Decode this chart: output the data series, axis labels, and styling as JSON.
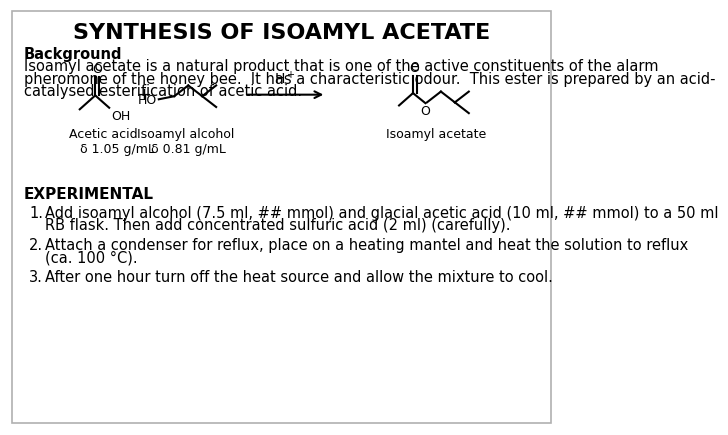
{
  "title": "SYNTHESIS OF ISOAMYL ACETATE",
  "background_color": "#ffffff",
  "border_color": "#b0b0b0",
  "title_fontsize": 16,
  "body_fontsize": 10.5,
  "background_text": "Background",
  "para1": "Isoamyl acetate is a natural product that is one of the active constituents of the alarm",
  "para2": "pheromone of the honey bee.  It has a characteristic odour.  This ester is prepared by an acid-",
  "para3": "catalysed esterification of acetic acid.",
  "experimental_header": "EXPERIMENTAL",
  "step1a": "Add isoamyl alcohol (7.5 ml, ## mmol) and glacial acetic acid (10 ml, ## mmol) to a 50 ml",
  "step1b": "RB flask. Then add concentrated sulfuric acid (2 ml) (carefully).",
  "step2a": "Attach a condenser for reflux, place on a heating mantel and heat the solution to reflux",
  "step2b": "(ca. 100 °C).",
  "step3": "After one hour turn off the heat source and allow the mixture to cool.",
  "label_acetic": "Acetic acid",
  "label_isoamyl_alc": "Isoamyl alcohol",
  "label_isoamyl_ace": "Isoamyl acetate",
  "density_acetic": "δ 1.05 g/mL",
  "density_isoamyl": "δ 0.81 g/mL",
  "hplus": "H$^+$",
  "plus_sign": "+",
  "num1": "1.",
  "num2": "2.",
  "num3": "3."
}
